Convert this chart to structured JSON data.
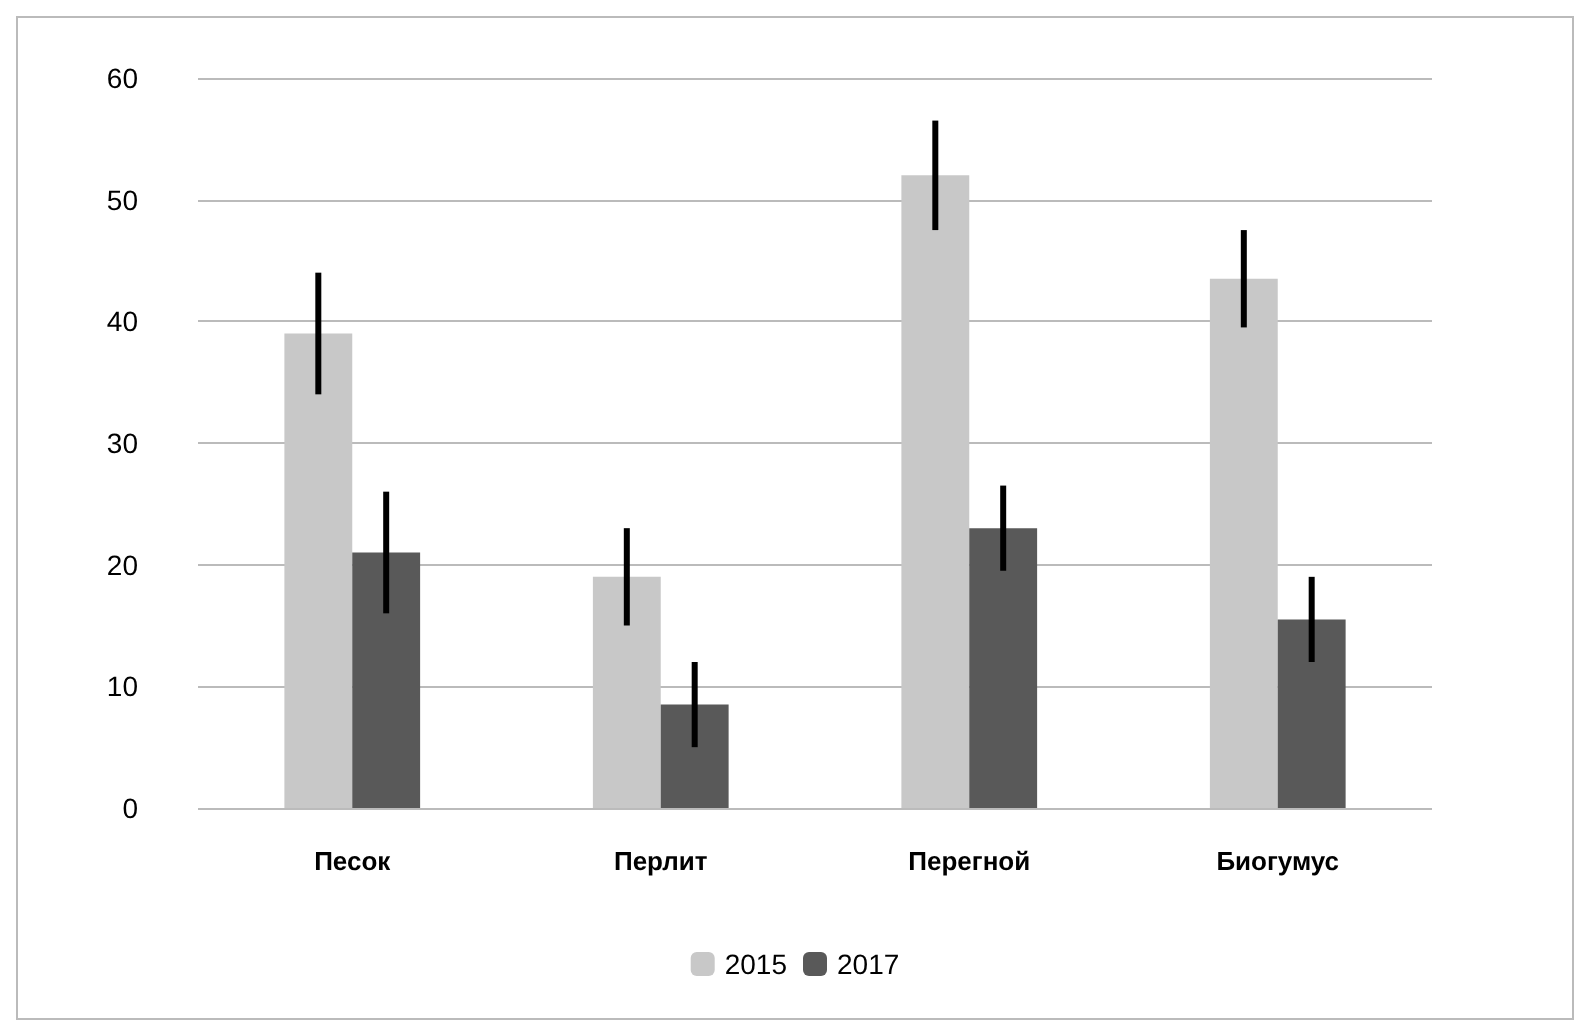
{
  "chart_data": {
    "type": "bar",
    "categories": [
      "Песок",
      "Перлит",
      "Перегной",
      "Биогумус"
    ],
    "series": [
      {
        "name": "2015",
        "color": "#c8c8c8",
        "values": [
          39,
          19,
          52,
          43.5
        ],
        "errors": [
          5,
          4,
          4.5,
          4
        ]
      },
      {
        "name": "2017",
        "color": "#595959",
        "values": [
          21,
          8.5,
          23,
          15.5
        ],
        "errors": [
          5,
          3.5,
          3.5,
          3.5
        ]
      }
    ],
    "ylim": [
      0,
      60
    ],
    "yticks": [
      0,
      10,
      20,
      30,
      40,
      50,
      60
    ],
    "grid": "y",
    "legend": "bottom"
  }
}
